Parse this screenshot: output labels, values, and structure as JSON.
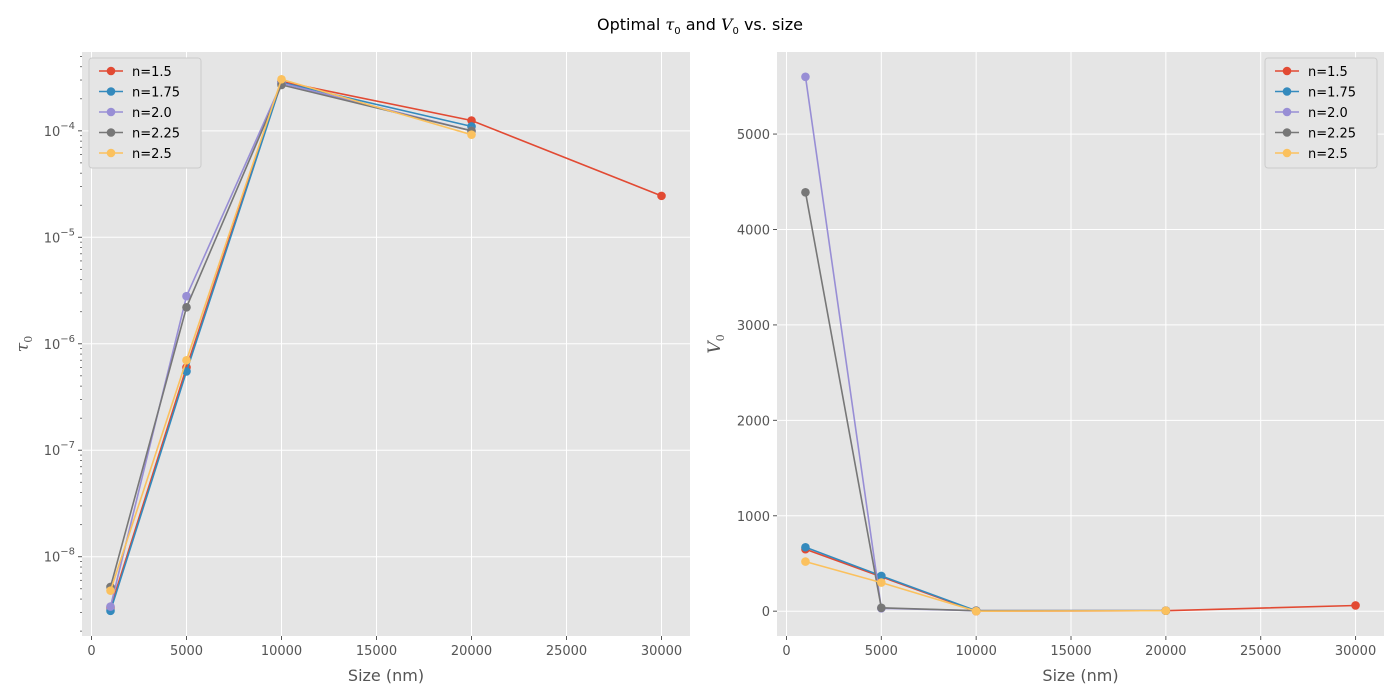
{
  "title": {
    "prefix": "Optimal ",
    "sym1": "τ",
    "sub1": "0",
    "mid": " and ",
    "sym2": "V",
    "sub2": "0",
    "suffix": " vs. size"
  },
  "colors": {
    "background": "#e5e5e5",
    "grid": "#ffffff",
    "tick_text": "#555555",
    "series": [
      "#e24a33",
      "#348abd",
      "#988ed5",
      "#777777",
      "#fbc15e"
    ]
  },
  "chart_data": [
    {
      "type": "line",
      "x_label": "Size (nm)",
      "y_label_symbol": "τ",
      "y_label_sub": "0",
      "y_scale": "log",
      "xlim": [
        -500,
        31500
      ],
      "ylim": [
        1.8e-09,
        0.00055
      ],
      "x_ticks": [
        0,
        5000,
        10000,
        15000,
        20000,
        25000,
        30000
      ],
      "x_tick_labels": [
        "0",
        "5000",
        "10000",
        "15000",
        "20000",
        "25000",
        "30000"
      ],
      "y_ticks": [
        {
          "value": 1e-08,
          "base": "10",
          "exp": "−8"
        },
        {
          "value": 1e-07,
          "base": "10",
          "exp": "−7"
        },
        {
          "value": 1e-06,
          "base": "10",
          "exp": "−6"
        },
        {
          "value": 1e-05,
          "base": "10",
          "exp": "−5"
        },
        {
          "value": 0.0001,
          "base": "10",
          "exp": "−4"
        }
      ],
      "grid": true,
      "legend_position": "upper-left",
      "series": [
        {
          "name": "n=1.5",
          "x": [
            1000,
            5000,
            10000,
            20000,
            30000
          ],
          "y": [
            3.3e-09,
            6e-07,
            0.00029,
            0.000125,
            2.45e-05
          ]
        },
        {
          "name": "n=1.75",
          "x": [
            1000,
            5000,
            10000,
            20000
          ],
          "y": [
            3.1e-09,
            5.5e-07,
            0.000285,
            0.00011
          ]
        },
        {
          "name": "n=2.0",
          "x": [
            1000,
            5000,
            10000,
            20000
          ],
          "y": [
            3.4e-09,
            2.8e-06,
            0.00028,
            0.0001
          ]
        },
        {
          "name": "n=2.25",
          "x": [
            1000,
            5000,
            10000,
            20000
          ],
          "y": [
            5.2e-09,
            2.2e-06,
            0.00027,
            0.0001
          ]
        },
        {
          "name": "n=2.5",
          "x": [
            1000,
            5000,
            10000,
            20000
          ],
          "y": [
            4.8e-09,
            7e-07,
            0.000305,
            9.2e-05
          ]
        }
      ]
    },
    {
      "type": "line",
      "x_label": "Size (nm)",
      "y_label_symbol": "V",
      "y_label_sub": "0",
      "y_scale": "linear",
      "xlim": [
        -500,
        31500
      ],
      "ylim": [
        -260,
        5860
      ],
      "x_ticks": [
        0,
        5000,
        10000,
        15000,
        20000,
        25000,
        30000
      ],
      "x_tick_labels": [
        "0",
        "5000",
        "10000",
        "15000",
        "20000",
        "25000",
        "30000"
      ],
      "y_ticks": [
        0,
        1000,
        2000,
        3000,
        4000,
        5000
      ],
      "y_tick_labels": [
        "0",
        "1000",
        "2000",
        "3000",
        "4000",
        "5000"
      ],
      "grid": true,
      "legend_position": "upper-right",
      "series": [
        {
          "name": "n=1.5",
          "x": [
            1000,
            5000,
            10000,
            20000,
            30000
          ],
          "y": [
            650,
            360,
            0,
            5,
            60
          ]
        },
        {
          "name": "n=1.75",
          "x": [
            1000,
            5000,
            10000,
            20000
          ],
          "y": [
            670,
            370,
            5,
            5
          ]
        },
        {
          "name": "n=2.0",
          "x": [
            1000,
            5000,
            10000,
            20000
          ],
          "y": [
            5600,
            30,
            5,
            5
          ]
        },
        {
          "name": "n=2.25",
          "x": [
            1000,
            5000,
            10000,
            20000
          ],
          "y": [
            4390,
            35,
            5,
            5
          ]
        },
        {
          "name": "n=2.5",
          "x": [
            1000,
            5000,
            10000,
            20000
          ],
          "y": [
            520,
            300,
            0,
            5
          ]
        }
      ]
    }
  ]
}
